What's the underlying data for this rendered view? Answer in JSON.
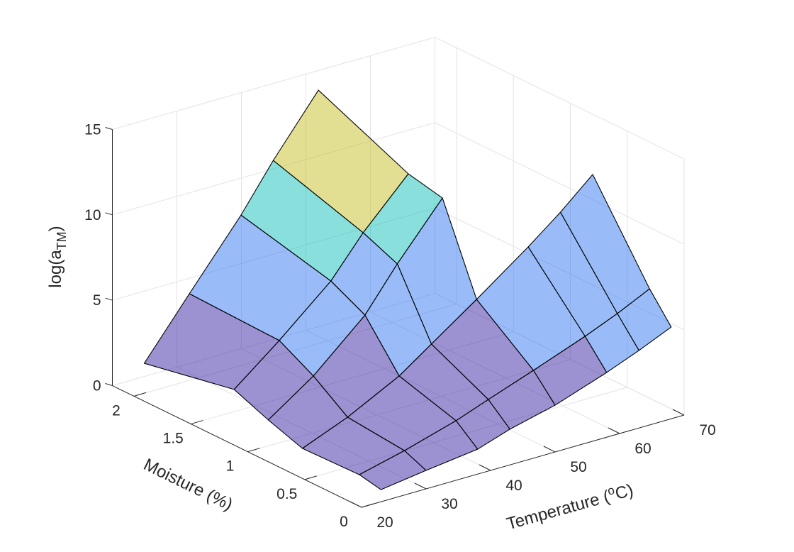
{
  "chart_data": {
    "type": "surface",
    "title": "",
    "xlabel": {
      "prefix": "Temperature (",
      "superscript": "o",
      "suffix": "C)"
    },
    "ylabel": "Moisture (%)",
    "zlabel": {
      "prefix": "log(a",
      "subscript": "TM",
      "suffix": ")"
    },
    "xlim": [
      20,
      70
    ],
    "ylim": [
      0,
      2.19
    ],
    "zlim": [
      0,
      15
    ],
    "xticks": [
      20,
      30,
      40,
      50,
      60,
      70
    ],
    "xtick_labels": [
      "20",
      "30",
      "40",
      "50",
      "60",
      "70"
    ],
    "yticks": [
      0,
      0.5,
      1,
      1.5,
      2
    ],
    "ytick_labels": [
      "0",
      "0.5",
      "1",
      "1.5",
      "2"
    ],
    "zticks": [
      0,
      5,
      10,
      15
    ],
    "ztick_labels": [
      "0",
      "5",
      "10",
      "15"
    ],
    "grid": true,
    "temperature": [
      23,
      30,
      38,
      43,
      50,
      58,
      63,
      68
    ],
    "moisture": [
      0,
      0.19,
      0.69,
      0.99,
      1.29,
      2.08
    ],
    "z": [
      [
        0.71,
        1.08,
        1.46,
        2.09,
        2.74,
        3.79,
        4.54,
        5.37
      ],
      [
        0.97,
        1.62,
        2.51,
        3.21,
        4.16,
        5.29,
        6.08,
        6.99
      ],
      [
        0.88,
        1.95,
        3.5,
        4.83,
        6.69,
        8.9,
        10.39,
        12.06
      ],
      [
        1.57,
        3.39,
        6.09,
        8.55,
        11.65,
        null,
        null,
        null
      ],
      [
        2.38,
        4.49,
        7.11,
        9.4,
        12.09,
        null,
        null,
        null
      ],
      [
        1.34,
        4.66,
        8.4,
        11.06,
        14.42,
        null,
        null,
        null
      ]
    ],
    "color_levels": [
      3.3,
      6.9,
      9.0
    ],
    "colormap": [
      "#3b25a3",
      "#3379f3",
      "#11bfb9",
      "#c5bf27"
    ],
    "face_alpha": 0.5,
    "edge_color": "#000000"
  }
}
